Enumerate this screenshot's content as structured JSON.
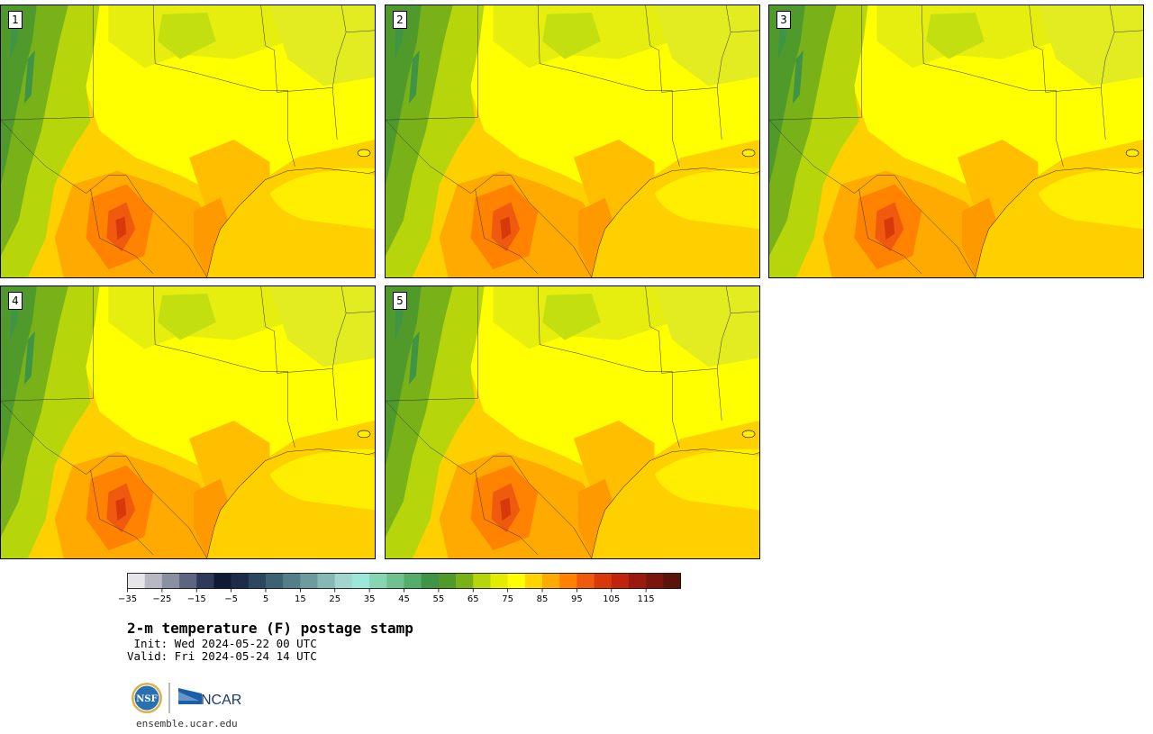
{
  "panels": [
    {
      "id": "1",
      "col": 0,
      "row": 0
    },
    {
      "id": "2",
      "col": 1,
      "row": 0
    },
    {
      "id": "3",
      "col": 2,
      "row": 0
    },
    {
      "id": "4",
      "col": 0,
      "row": 1
    },
    {
      "id": "5",
      "col": 1,
      "row": 1
    }
  ],
  "colorbar": {
    "colors": [
      "#e6e6ea",
      "#b7b7c5",
      "#8b8fa2",
      "#5e6580",
      "#2f3a5a",
      "#0f1a35",
      "#1c2c4a",
      "#2c4760",
      "#3d6272",
      "#557f88",
      "#6c9c9e",
      "#86b9b6",
      "#a0d6ce",
      "#9be8d8",
      "#86d6b4",
      "#6fc28f",
      "#55ad6b",
      "#3f9446",
      "#4f9a2a",
      "#79b119",
      "#b6d60b",
      "#e4ec00",
      "#ffff00",
      "#ffd400",
      "#ffaa00",
      "#ff8200",
      "#f05a0f",
      "#d8390a",
      "#c0240c",
      "#9a1a0d",
      "#7a160e",
      "#5a140c"
    ],
    "ticks": [
      "−35",
      "−25",
      "−15",
      "−5",
      "5",
      "15",
      "25",
      "35",
      "45",
      "55",
      "65",
      "75",
      "85",
      "95",
      "105",
      "115"
    ]
  },
  "title": "2-m temperature (F) postage stamp",
  "init": " Init: Wed 2024-05-22 00 UTC",
  "valid": "Valid: Fri 2024-05-24 14 UTC",
  "logos": {
    "nsf": "NSF",
    "ncar": "NCAR"
  },
  "site": "ensemble.ucar.edu"
}
